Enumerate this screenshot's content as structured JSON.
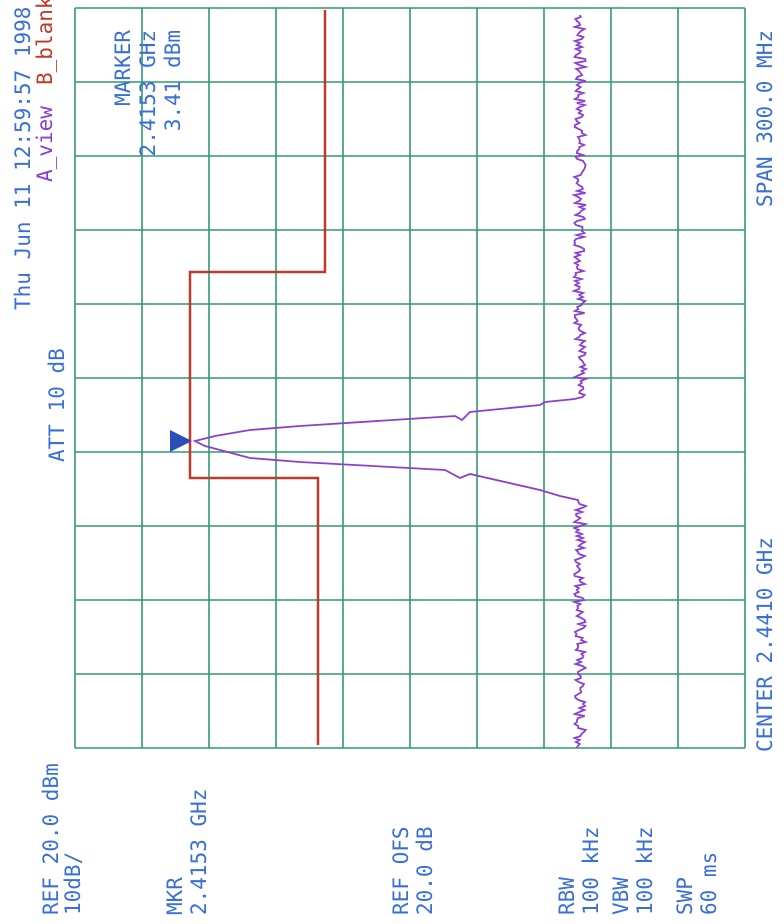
{
  "header": {
    "timestamp": "Thu Jun 11 12:59:57 1998",
    "view": "A_view",
    "blank": "B_blank",
    "attenuation": "ATT 10 dB"
  },
  "marker_box": {
    "title": "MARKER",
    "frequency": "2.4153 GHz",
    "level": "3.41 dBm"
  },
  "frequency": {
    "span": "SPAN 300.0 MHz",
    "center": "CENTER 2.4410 GHz"
  },
  "reference": {
    "level": "REF 20.0 dBm",
    "scale": "10dB/"
  },
  "mkr": {
    "label": "MKR",
    "frequency": "2.4153 GHz"
  },
  "ref_offset": {
    "label": "REF OFS",
    "value": "20.0 dB"
  },
  "bandwidth": {
    "rbw_label": "RBW",
    "rbw": "100 kHz",
    "vbw_label": "VBW",
    "vbw": "100 kHz",
    "swp_label": "SWP",
    "swp": "60 ms"
  }
}
